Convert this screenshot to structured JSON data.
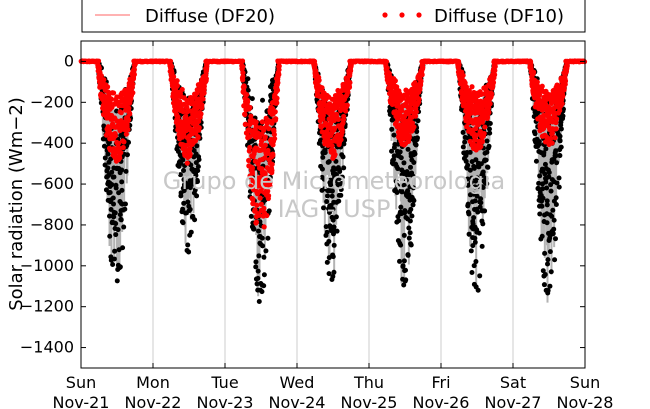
{
  "chart_data": {
    "type": "line",
    "ylabel": "Solar radiation (Wm−2)",
    "ylim": [
      -1500,
      100
    ],
    "yticks": [
      0,
      -200,
      -400,
      -600,
      -800,
      -1000,
      -1200,
      -1400
    ],
    "xlim": [
      "2015-11-21",
      "2015-11-28"
    ],
    "xtick_labels": [
      [
        "Sun",
        "Nov-21"
      ],
      [
        "Mon",
        "Nov-22"
      ],
      [
        "Tue",
        "Nov-23"
      ],
      [
        "Wed",
        "Nov-24"
      ],
      [
        "Thu",
        "Nov-25"
      ],
      [
        "Fri",
        "Nov-26"
      ],
      [
        "Sat",
        "Nov-27"
      ],
      [
        "Sun",
        "Nov-28"
      ]
    ],
    "grid": "vertical",
    "legend_placement": "top",
    "watermark": [
      "Grupo de Micrometeorologia",
      "IAG - USP"
    ],
    "series": [
      {
        "name": "Diffuse (DF20)",
        "style": "line",
        "color": "#ff6666"
      },
      {
        "name": "Diffuse (DF10)",
        "style": "dots",
        "color": "#ff0000"
      },
      {
        "style": "dots",
        "color": "#000000"
      },
      {
        "style": "band",
        "color": "#b3b3b3"
      }
    ],
    "daily_minima": {
      "days": [
        "Nov-21",
        "Nov-22",
        "Nov-23",
        "Nov-24",
        "Nov-25",
        "Nov-26",
        "Nov-27"
      ],
      "black_dots": [
        -1130,
        -940,
        -1180,
        -1110,
        -1140,
        -1140,
        -1190
      ],
      "red_dots": [
        -500,
        -500,
        -850,
        -490,
        -420,
        -440,
        -420
      ]
    }
  }
}
